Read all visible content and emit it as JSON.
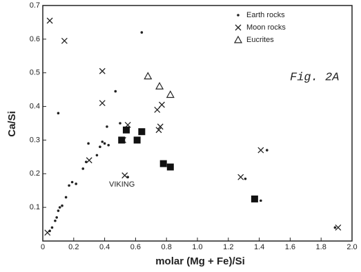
{
  "chart_data": {
    "type": "scatter",
    "xlabel": "molar (Mg + Fe)/Si",
    "ylabel": "Ca/Si",
    "annotations": [
      "Fig. 2A",
      "VIKING"
    ],
    "xlim": [
      0,
      2.0
    ],
    "ylim": [
      0,
      0.7
    ],
    "xticks": [
      0,
      0.2,
      0.4,
      0.6,
      0.8,
      {
        "value": 1.0,
        "label": "1.0"
      },
      1.2,
      1.4,
      1.6,
      1.8,
      {
        "value": 2.0,
        "label": "2.0"
      }
    ],
    "yticks": [
      0.1,
      0.2,
      0.3,
      0.4,
      0.5,
      0.6,
      0.7
    ],
    "legend": "upper right",
    "series": [
      {
        "name": "Earth rocks",
        "marker": "dot",
        "color": "#222",
        "x": [
          0.045,
          0.06,
          0.08,
          0.09,
          0.1,
          0.11,
          0.125,
          0.15,
          0.17,
          0.19,
          0.215,
          0.26,
          0.28,
          0.295,
          0.35,
          0.37,
          0.385,
          0.4,
          0.425,
          0.47,
          0.5,
          0.5,
          0.55,
          0.64,
          0.1,
          0.415,
          1.45,
          1.31,
          1.41,
          1.89
        ],
        "y": [
          0.03,
          0.04,
          0.06,
          0.07,
          0.09,
          0.1,
          0.105,
          0.13,
          0.165,
          0.175,
          0.17,
          0.215,
          0.235,
          0.29,
          0.255,
          0.28,
          0.295,
          0.29,
          0.285,
          0.445,
          0.295,
          0.35,
          0.19,
          0.62,
          0.38,
          0.34,
          0.27,
          0.185,
          0.12,
          0.04
        ]
      },
      {
        "name": "Moon rocks",
        "marker": "x",
        "color": "#222",
        "x": [
          0.045,
          0.14,
          0.385,
          0.385,
          0.3,
          0.55,
          0.53,
          0.52,
          0.74,
          0.77,
          0.76,
          0.75,
          1.28,
          1.41,
          1.91,
          0.03
        ],
        "y": [
          0.655,
          0.595,
          0.505,
          0.41,
          0.24,
          0.345,
          0.195,
          0.3,
          0.39,
          0.405,
          0.34,
          0.33,
          0.19,
          0.27,
          0.04,
          0.025
        ]
      },
      {
        "name": "Eucrites",
        "marker": "triangle",
        "color": "#222",
        "x": [
          0.68,
          0.755,
          0.825
        ],
        "y": [
          0.49,
          0.46,
          0.435
        ]
      },
      {
        "marker": "square",
        "color": "#111",
        "x": [
          0.54,
          0.51,
          0.61,
          0.64,
          0.78,
          0.825,
          1.37
        ],
        "y": [
          0.33,
          0.3,
          0.3,
          0.325,
          0.23,
          0.22,
          0.125
        ]
      }
    ]
  }
}
